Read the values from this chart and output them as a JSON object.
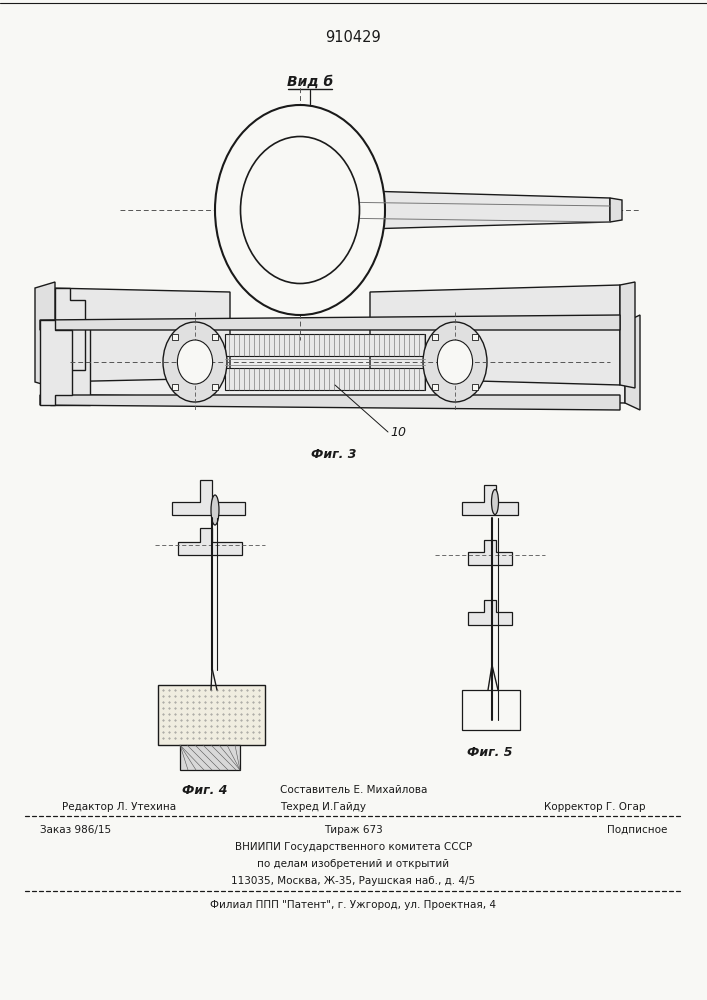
{
  "patent_number": "910429",
  "fig3_label": "Фиг. 3",
  "fig4_label": "Фиг. 4",
  "fig5_label": "Фиг. 5",
  "vid_b_label": "Вид б",
  "label_10": "10",
  "editor_line": "Редактор Л. Утехина",
  "composer_line": "Составитель Е. Михайлова",
  "techred_line": "Техред И.Гайду",
  "corrector_line": "Корректор Г. Огар",
  "order_line": "Заказ 986/15",
  "tirazh_line": "Тираж 673",
  "podpisnoe_line": "Подписное",
  "vniiipi_line": "ВНИИПИ Государственного комитета СССР",
  "po_delam_line": "по делам изобретений и открытий",
  "address_line": "113035, Москва, Ж-35, Раушская наб., д. 4/5",
  "filial_line": "Филиал ППП \"Патент\", г. Ужгород, ул. Проектная, 4",
  "bg_color": "#f8f8f5",
  "line_color": "#1a1a1a"
}
